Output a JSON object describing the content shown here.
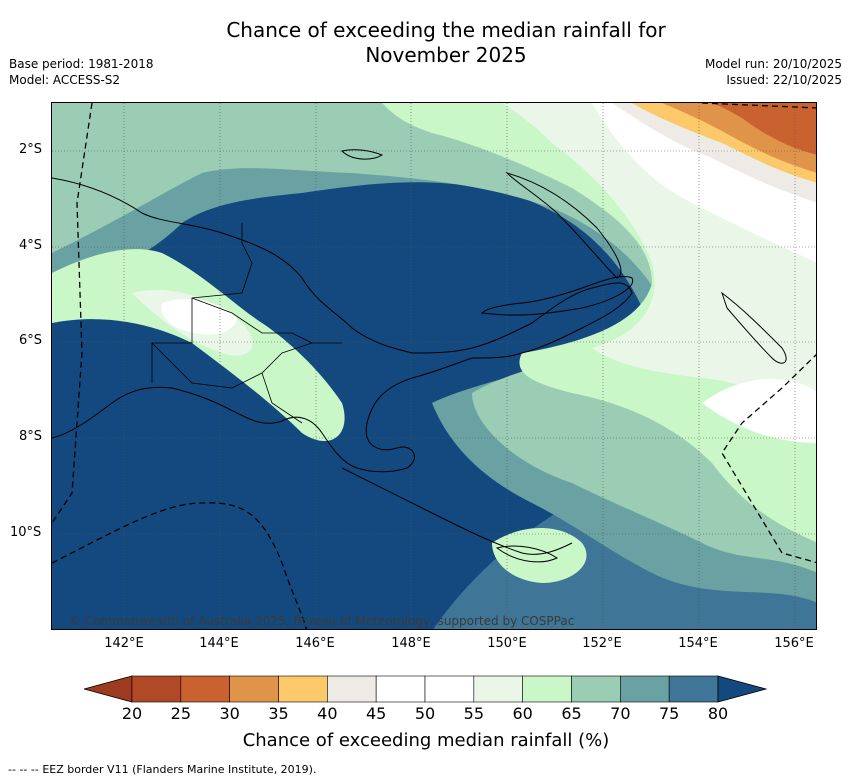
{
  "header": {
    "title_line1": "Chance of exceeding the median rainfall for",
    "title_line2": "November 2025",
    "base_period": "Base period: 1981-2018",
    "model": "Model: ACCESS-S2",
    "model_run": "Model run: 20/10/2025",
    "issued": "Issued: 22/10/2025"
  },
  "map": {
    "lat_labels": [
      "2°S",
      "4°S",
      "6°S",
      "8°S",
      "10°S"
    ],
    "lon_labels": [
      "142°E",
      "144°E",
      "146°E",
      "148°E",
      "150°E",
      "152°E",
      "154°E",
      "156°E"
    ],
    "copyright": "© Commonwealth of Australia 2025, Bureau of Meteorology, supported by COSPPac"
  },
  "colorbar": {
    "ticks": [
      "20",
      "25",
      "30",
      "35",
      "40",
      "45",
      "50",
      "55",
      "60",
      "65",
      "70",
      "75",
      "80"
    ],
    "colors": [
      "#b04a26",
      "#c9622f",
      "#e0944a",
      "#fbc96a",
      "#eeebe6",
      "#ffffff",
      "#ffffff",
      "#eaf6e8",
      "#c9f7c8",
      "#9acdb4",
      "#6aa2a3",
      "#3f7596"
    ],
    "low_extend_color": "#9d3a1f",
    "high_extend_color": "#13497f",
    "label": "Chance of exceeding median rainfall (%)"
  },
  "footer": {
    "legend_marker": "--  --  --",
    "eez_note": "EEZ border V11 (Flanders Marine Institute, 2019)."
  }
}
